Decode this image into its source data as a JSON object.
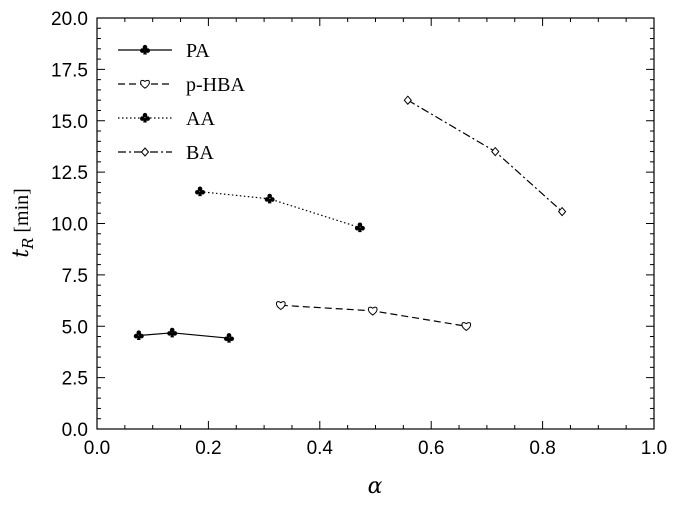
{
  "chart_data": {
    "type": "line",
    "xlabel": "α",
    "ylabel_main": "t",
    "ylabel_sub": "R",
    "ylabel_unit": " [min]",
    "xlim": [
      0.0,
      1.0
    ],
    "ylim": [
      0.0,
      20.0
    ],
    "xticks": [
      "0.0",
      "0.2",
      "0.4",
      "0.6",
      "0.8",
      "1.0"
    ],
    "yticks": [
      "0.0",
      "2.5",
      "5.0",
      "7.5",
      "10.0",
      "12.5",
      "15.0",
      "17.5",
      "20.0"
    ],
    "grid": false,
    "legend_position": "top-left",
    "series": [
      {
        "name": "PA",
        "line": "solid",
        "marker": "club-filled",
        "color": "#000000",
        "x": [
          0.075,
          0.135,
          0.237
        ],
        "y": [
          4.55,
          4.68,
          4.42
        ]
      },
      {
        "name": "p-HBA",
        "line": "dashed",
        "marker": "heart-open",
        "color": "#000000",
        "x": [
          0.33,
          0.495,
          0.663
        ],
        "y": [
          6.02,
          5.75,
          5.0
        ]
      },
      {
        "name": "AA",
        "line": "dotted",
        "marker": "club-filled",
        "color": "#000000",
        "x": [
          0.185,
          0.31,
          0.472
        ],
        "y": [
          11.55,
          11.2,
          9.8
        ]
      },
      {
        "name": "BA",
        "line": "dashdot",
        "marker": "diamond-open",
        "color": "#000000",
        "x": [
          0.558,
          0.715,
          0.835
        ],
        "y": [
          16.0,
          13.5,
          10.58
        ]
      }
    ]
  }
}
